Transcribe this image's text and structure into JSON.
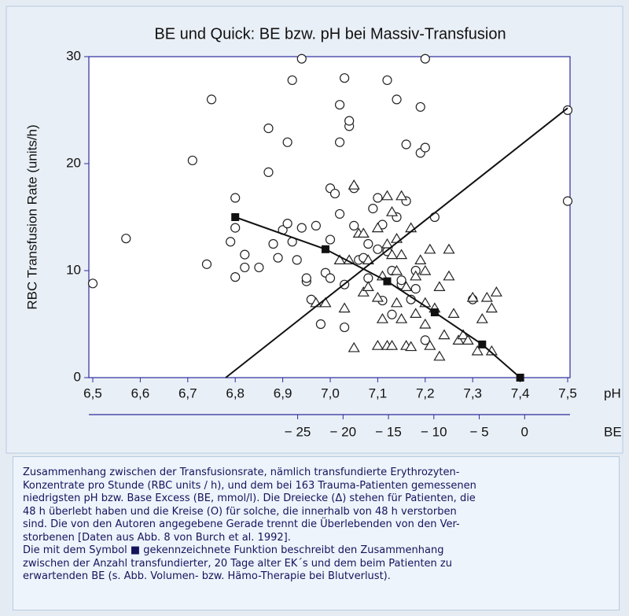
{
  "chart_data": {
    "type": "scatter",
    "title": "BE und Quick: BE bzw. pH bei Massiv-Transfusion",
    "y_label": "RBC Transfusion Rate (units/h)",
    "x_label": "pH",
    "x2_label": "BE",
    "xlim": [
      6.5,
      7.5
    ],
    "xticks": [
      {
        "value": 6.5,
        "label": "6,5"
      },
      {
        "value": 6.6,
        "label": "6,6"
      },
      {
        "value": 6.7,
        "label": "6,7"
      },
      {
        "value": 6.8,
        "label": "6,8"
      },
      {
        "value": 6.9,
        "label": "6,9"
      },
      {
        "value": 7.0,
        "label": "7,0"
      },
      {
        "value": 7.1,
        "label": "7,1"
      },
      {
        "value": 7.2,
        "label": "7,2"
      },
      {
        "value": 7.3,
        "label": "7,3"
      },
      {
        "value": 7.4,
        "label": "7,4"
      },
      {
        "value": 7.5,
        "label": "7,5"
      }
    ],
    "x2lim": [
      -48,
      5
    ],
    "x2ticks": [
      {
        "value": -25,
        "label": "− 25"
      },
      {
        "value": -20,
        "label": "− 20"
      },
      {
        "value": -15,
        "label": "− 15"
      },
      {
        "value": -10,
        "label": "− 10"
      },
      {
        "value": -5,
        "label": "− 5"
      },
      0
    ],
    "ylim": [
      0,
      30
    ],
    "yticks": [
      0,
      10,
      20,
      30
    ],
    "axis_color": "#2c2c9c",
    "series": [
      {
        "marker": "circle",
        "color": "#222222",
        "x": [
          6.5,
          6.57,
          6.71,
          6.74,
          6.75,
          6.79,
          6.8,
          6.8,
          6.8,
          6.82,
          6.82,
          6.87,
          6.87,
          6.88,
          6.89,
          6.9,
          6.91,
          6.91,
          6.92,
          6.92,
          6.93,
          6.94,
          6.94,
          6.95,
          6.95,
          6.96,
          6.97,
          6.98,
          6.99,
          7.0,
          7.0,
          7.0,
          7.01,
          7.02,
          7.02,
          7.02,
          7.03,
          7.03,
          7.03,
          7.04,
          7.04,
          7.05,
          7.05,
          7.06,
          7.07,
          7.08,
          7.09,
          7.1,
          7.1,
          7.11,
          7.12,
          7.12,
          7.13,
          7.13,
          7.14,
          7.14,
          7.15,
          7.15,
          7.16,
          7.16,
          7.18,
          7.19,
          7.19,
          7.2,
          7.2,
          7.2,
          7.22,
          7.18,
          7.17,
          7.11,
          7.08,
          7.5,
          7.5,
          7.3,
          6.85
        ],
        "values": [
          8.8,
          13,
          20.3,
          10.6,
          26,
          12.7,
          9.4,
          14,
          16.8,
          10.3,
          11.5,
          23.3,
          19.2,
          12.5,
          11.2,
          13.8,
          22,
          14.4,
          12.7,
          27.8,
          11,
          29.8,
          14,
          9,
          9.3,
          7.3,
          14.2,
          5,
          9.8,
          9.3,
          12.9,
          17.7,
          17.2,
          22,
          25.5,
          15.3,
          4.7,
          8.7,
          28,
          23.5,
          24,
          17.7,
          14.2,
          11,
          11.2,
          12.5,
          15.8,
          12,
          16.8,
          14.3,
          27.8,
          11.8,
          10,
          5.9,
          26,
          15,
          8.7,
          9.1,
          21.8,
          16.5,
          8.3,
          25.3,
          21,
          21.5,
          29.8,
          3.5,
          15,
          10,
          7.3,
          7.2,
          9.3,
          25,
          16.5,
          7.3,
          10.3
        ]
      },
      {
        "marker": "triangle",
        "color": "#222222",
        "x": [
          6.97,
          6.99,
          7.02,
          7.03,
          7.04,
          7.05,
          7.05,
          7.06,
          7.07,
          7.07,
          7.08,
          7.1,
          7.1,
          7.1,
          7.11,
          7.11,
          7.12,
          7.12,
          7.13,
          7.13,
          7.13,
          7.14,
          7.14,
          7.14,
          7.15,
          7.15,
          7.16,
          7.16,
          7.17,
          7.17,
          7.18,
          7.18,
          7.19,
          7.2,
          7.2,
          7.2,
          7.21,
          7.21,
          7.22,
          7.23,
          7.23,
          7.24,
          7.25,
          7.25,
          7.26,
          7.27,
          7.28,
          7.29,
          7.3,
          7.31,
          7.32,
          7.33,
          7.34,
          7.35,
          7.34,
          7.15,
          7.12,
          7.08
        ],
        "values": [
          7,
          7,
          11,
          6.5,
          11,
          2.8,
          18,
          13.5,
          8,
          13.5,
          11,
          3,
          14,
          7.5,
          9.5,
          5.5,
          12.5,
          3,
          3,
          11.5,
          15.5,
          7,
          10,
          13,
          5.5,
          11.5,
          8.5,
          3,
          2.9,
          14,
          9.5,
          6,
          11,
          10,
          5,
          7,
          3,
          12,
          6.5,
          2,
          8.5,
          4,
          9.5,
          12,
          6,
          3.5,
          4,
          3.5,
          7.5,
          2.5,
          5.5,
          7.5,
          6.5,
          8,
          2.5,
          17,
          17,
          8.5
        ]
      },
      {
        "marker": "square",
        "line": true,
        "color": "#111111",
        "x": [
          6.8,
          6.99,
          7.12,
          7.22,
          7.32,
          7.4
        ],
        "values": [
          15,
          12,
          9,
          6.1,
          3.1,
          0
        ]
      },
      {
        "marker": "none",
        "line": true,
        "color": "#111111",
        "x": [
          6.78,
          7.5
        ],
        "values": [
          0,
          25.2
        ]
      }
    ]
  },
  "caption": [
    "Zusammenhang zwischen der Transfusionsrate, nämlich transfundierte Erythrozyten-",
    "Konzentrate pro Stunde (RBC units / h), und dem bei 163 Trauma-Patienten gemessenen",
    "niedrigsten pH bzw. Base Excess (BE, mmol/l). Die Dreiecke (Δ) stehen für Patienten, die",
    "48 h überlebt haben und die Kreise (O) für solche, die innerhalb von 48 h verstorben",
    "sind. Die von den Autoren angegebene Gerade trennt die Überlebenden von den Ver-",
    "storbenen [Daten aus Abb. 8 von Burch et al. 1992].",
    "Die mit dem Symbol ■ gekennzeichnete Funktion beschreibt den Zusammenhang",
    "zwischen der Anzahl transfundierter, 20 Tage alter EK´s und dem beim Patienten zu",
    "erwartenden BE (s. Abb. Volumen- bzw. Hämo-Therapie bei Blutverlust)."
  ]
}
